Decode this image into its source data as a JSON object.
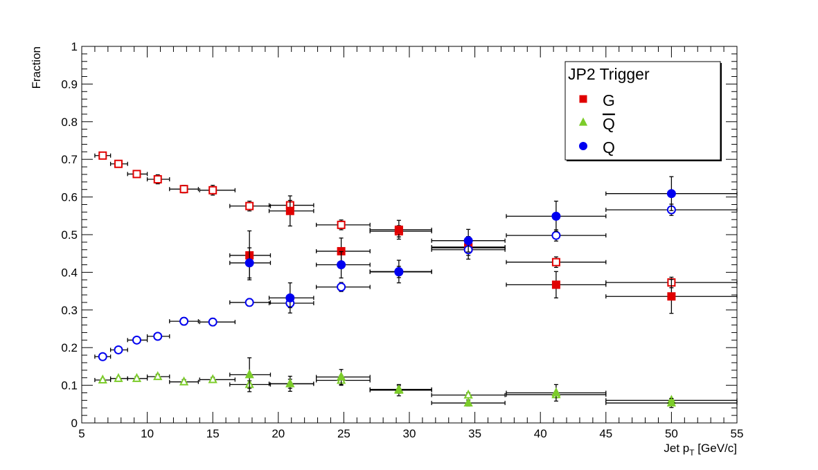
{
  "chart_data": {
    "type": "scatter",
    "xlabel_main": "Jet p",
    "xlabel_sub": "T",
    "xlabel_unit": "[GeV/c]",
    "ylabel": "Fraction",
    "xlim": [
      5,
      55
    ],
    "ylim": [
      0,
      1
    ],
    "x_ticks": [
      5,
      10,
      15,
      20,
      25,
      30,
      35,
      40,
      45,
      50,
      55
    ],
    "y_ticks": [
      0,
      0.1,
      0.2,
      0.3,
      0.4,
      0.5,
      0.6,
      0.7,
      0.8,
      0.9,
      1
    ],
    "y_tick_labels": [
      "0",
      "0.1",
      "0.2",
      "0.3",
      "0.4",
      "0.5",
      "0.6",
      "0.7",
      "0.8",
      "0.9",
      "1"
    ],
    "grid": false,
    "legend": {
      "title": "JP2 Trigger",
      "position": "top-right",
      "entries": [
        {
          "label": "G",
          "overline": false,
          "color": "#e00000",
          "marker": "square"
        },
        {
          "label": "Q",
          "overline": true,
          "color": "#7ccc2a",
          "marker": "triangle"
        },
        {
          "label": "Q",
          "overline": false,
          "color": "#0000f0",
          "marker": "circle"
        }
      ]
    },
    "series": [
      {
        "color": "#e00000",
        "marker": "square",
        "fill": "open",
        "points": [
          {
            "x": 6.6,
            "y": 0.71,
            "xerr": [
              0.6,
              0.6
            ],
            "yerr": 0.005
          },
          {
            "x": 7.8,
            "y": 0.688,
            "xerr": [
              0.6,
              0.7
            ],
            "yerr": 0.005
          },
          {
            "x": 9.2,
            "y": 0.661,
            "xerr": [
              0.7,
              0.8
            ],
            "yerr": 0.008
          },
          {
            "x": 10.8,
            "y": 0.647,
            "xerr": [
              0.8,
              0.9
            ],
            "yerr": 0.012
          },
          {
            "x": 12.8,
            "y": 0.621,
            "xerr": [
              1.1,
              1.1
            ],
            "yerr": 0.01
          },
          {
            "x": 15.0,
            "y": 0.618,
            "xerr": [
              1.0,
              1.7
            ],
            "yerr": 0.013
          },
          {
            "x": 17.8,
            "y": 0.576,
            "xerr": [
              1.5,
              1.6
            ],
            "yerr": 0.013
          },
          {
            "x": 20.9,
            "y": 0.578,
            "xerr": [
              1.6,
              1.8
            ],
            "yerr": 0.013
          },
          {
            "x": 24.8,
            "y": 0.526,
            "xerr": [
              1.9,
              2.2
            ],
            "yerr": 0.013
          },
          {
            "x": 29.2,
            "y": 0.509,
            "xerr": [
              2.2,
              2.5
            ],
            "yerr": 0.015
          },
          {
            "x": 34.5,
            "y": 0.467,
            "xerr": [
              2.8,
              2.8
            ],
            "yerr": 0.012
          },
          {
            "x": 41.2,
            "y": 0.427,
            "xerr": [
              3.8,
              3.8
            ],
            "yerr": 0.014
          },
          {
            "x": 50.0,
            "y": 0.373,
            "xerr": [
              5.0,
              5.0
            ],
            "yerr": 0.014
          }
        ]
      },
      {
        "color": "#e00000",
        "marker": "square",
        "fill": "filled",
        "points": [
          {
            "x": 17.8,
            "y": 0.445,
            "xerr": [
              1.5,
              1.6
            ],
            "yerr": 0.065
          },
          {
            "x": 20.9,
            "y": 0.563,
            "xerr": [
              1.6,
              1.8
            ],
            "yerr": 0.04
          },
          {
            "x": 24.8,
            "y": 0.456,
            "xerr": [
              1.9,
              2.2
            ],
            "yerr": 0.035
          },
          {
            "x": 29.2,
            "y": 0.513,
            "xerr": [
              2.2,
              2.5
            ],
            "yerr": 0.025
          },
          {
            "x": 34.5,
            "y": 0.465,
            "xerr": [
              2.8,
              2.8
            ],
            "yerr": 0.03
          },
          {
            "x": 41.2,
            "y": 0.367,
            "xerr": [
              3.8,
              3.8
            ],
            "yerr": 0.035
          },
          {
            "x": 50.0,
            "y": 0.336,
            "xerr": [
              5.0,
              5.0
            ],
            "yerr": 0.045
          }
        ]
      },
      {
        "color": "#0000f0",
        "marker": "circle",
        "fill": "open",
        "points": [
          {
            "x": 6.6,
            "y": 0.176,
            "xerr": [
              0.6,
              0.6
            ],
            "yerr": 0.004
          },
          {
            "x": 7.8,
            "y": 0.194,
            "xerr": [
              0.6,
              0.7
            ],
            "yerr": 0.005
          },
          {
            "x": 9.2,
            "y": 0.22,
            "xerr": [
              0.7,
              0.8
            ],
            "yerr": 0.006
          },
          {
            "x": 10.8,
            "y": 0.23,
            "xerr": [
              0.8,
              0.9
            ],
            "yerr": 0.006
          },
          {
            "x": 12.8,
            "y": 0.27,
            "xerr": [
              1.1,
              1.1
            ],
            "yerr": 0.01
          },
          {
            "x": 15.0,
            "y": 0.268,
            "xerr": [
              1.0,
              1.7
            ],
            "yerr": 0.01
          },
          {
            "x": 17.8,
            "y": 0.32,
            "xerr": [
              1.5,
              1.6
            ],
            "yerr": 0.01
          },
          {
            "x": 20.9,
            "y": 0.318,
            "xerr": [
              1.6,
              1.8
            ],
            "yerr": 0.012
          },
          {
            "x": 24.8,
            "y": 0.361,
            "xerr": [
              1.9,
              2.2
            ],
            "yerr": 0.012
          },
          {
            "x": 29.2,
            "y": 0.401,
            "xerr": [
              2.2,
              2.5
            ],
            "yerr": 0.015
          },
          {
            "x": 34.5,
            "y": 0.46,
            "xerr": [
              2.8,
              2.8
            ],
            "yerr": 0.015
          },
          {
            "x": 41.2,
            "y": 0.498,
            "xerr": [
              3.8,
              3.8
            ],
            "yerr": 0.015
          },
          {
            "x": 50.0,
            "y": 0.566,
            "xerr": [
              5.0,
              5.0
            ],
            "yerr": 0.015
          }
        ]
      },
      {
        "color": "#0000f0",
        "marker": "circle",
        "fill": "filled",
        "points": [
          {
            "x": 17.8,
            "y": 0.425,
            "xerr": [
              1.5,
              1.6
            ],
            "yerr": 0.04
          },
          {
            "x": 20.9,
            "y": 0.332,
            "xerr": [
              1.6,
              1.8
            ],
            "yerr": 0.04
          },
          {
            "x": 24.8,
            "y": 0.42,
            "xerr": [
              1.9,
              2.2
            ],
            "yerr": 0.035
          },
          {
            "x": 29.2,
            "y": 0.402,
            "xerr": [
              2.2,
              2.5
            ],
            "yerr": 0.03
          },
          {
            "x": 34.5,
            "y": 0.484,
            "xerr": [
              2.8,
              2.8
            ],
            "yerr": 0.03
          },
          {
            "x": 41.2,
            "y": 0.549,
            "xerr": [
              3.8,
              3.8
            ],
            "yerr": 0.04
          },
          {
            "x": 50.0,
            "y": 0.609,
            "xerr": [
              5.0,
              5.0
            ],
            "yerr": 0.045
          }
        ]
      },
      {
        "color": "#7ccc2a",
        "marker": "triangle",
        "fill": "open",
        "points": [
          {
            "x": 6.6,
            "y": 0.114,
            "xerr": [
              0.6,
              0.6
            ],
            "yerr": 0.004
          },
          {
            "x": 7.8,
            "y": 0.118,
            "xerr": [
              0.6,
              0.7
            ],
            "yerr": 0.004
          },
          {
            "x": 9.2,
            "y": 0.118,
            "xerr": [
              0.7,
              0.8
            ],
            "yerr": 0.005
          },
          {
            "x": 10.8,
            "y": 0.123,
            "xerr": [
              0.8,
              0.9
            ],
            "yerr": 0.006
          },
          {
            "x": 12.8,
            "y": 0.109,
            "xerr": [
              1.1,
              1.1
            ],
            "yerr": 0.006
          },
          {
            "x": 15.0,
            "y": 0.115,
            "xerr": [
              1.0,
              1.7
            ],
            "yerr": 0.006
          },
          {
            "x": 17.8,
            "y": 0.102,
            "xerr": [
              1.5,
              1.6
            ],
            "yerr": 0.01
          },
          {
            "x": 20.9,
            "y": 0.104,
            "xerr": [
              1.6,
              1.8
            ],
            "yerr": 0.012
          },
          {
            "x": 24.8,
            "y": 0.113,
            "xerr": [
              1.9,
              2.2
            ],
            "yerr": 0.013
          },
          {
            "x": 29.2,
            "y": 0.089,
            "xerr": [
              2.2,
              2.5
            ],
            "yerr": 0.01
          },
          {
            "x": 34.5,
            "y": 0.074,
            "xerr": [
              2.8,
              2.8
            ],
            "yerr": 0.006
          },
          {
            "x": 41.2,
            "y": 0.075,
            "xerr": [
              3.8,
              3.8
            ],
            "yerr": 0.008
          },
          {
            "x": 50.0,
            "y": 0.06,
            "xerr": [
              5.0,
              5.0
            ],
            "yerr": 0.005
          }
        ]
      },
      {
        "color": "#7ccc2a",
        "marker": "triangle",
        "fill": "filled",
        "points": [
          {
            "x": 17.8,
            "y": 0.128,
            "xerr": [
              1.5,
              1.6
            ],
            "yerr": 0.045
          },
          {
            "x": 20.9,
            "y": 0.104,
            "xerr": [
              1.6,
              1.8
            ],
            "yerr": 0.02
          },
          {
            "x": 24.8,
            "y": 0.122,
            "xerr": [
              1.9,
              2.2
            ],
            "yerr": 0.02
          },
          {
            "x": 29.2,
            "y": 0.087,
            "xerr": [
              2.2,
              2.5
            ],
            "yerr": 0.015
          },
          {
            "x": 34.5,
            "y": 0.053,
            "xerr": [
              2.8,
              2.8
            ],
            "yerr": 0.008
          },
          {
            "x": 41.2,
            "y": 0.08,
            "xerr": [
              3.8,
              3.8
            ],
            "yerr": 0.022
          },
          {
            "x": 50.0,
            "y": 0.053,
            "xerr": [
              5.0,
              5.0
            ],
            "yerr": 0.012
          }
        ]
      }
    ]
  }
}
